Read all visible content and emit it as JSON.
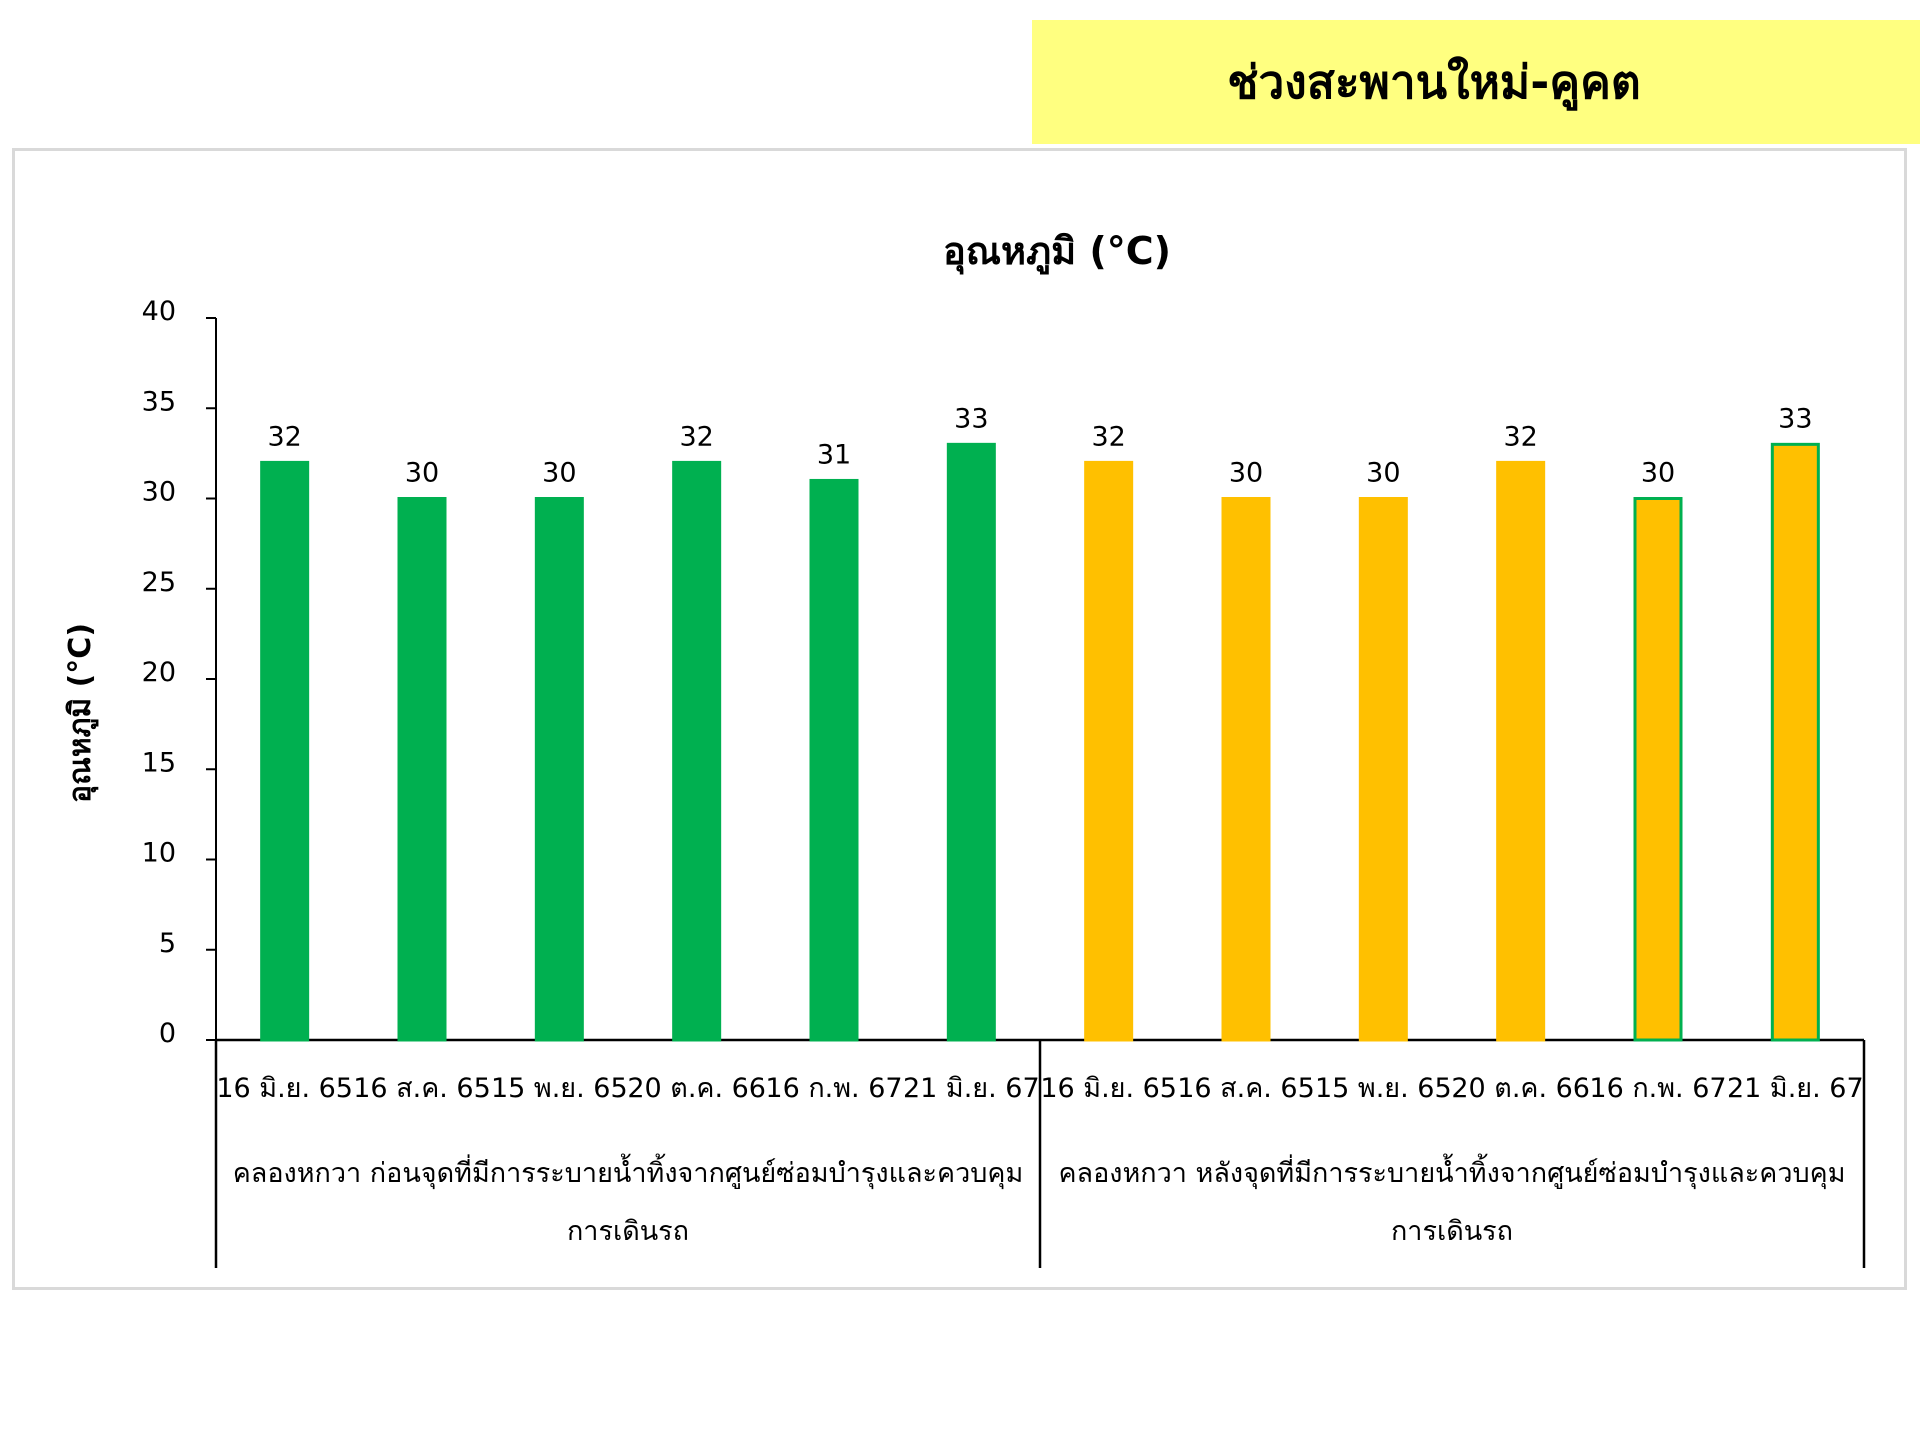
{
  "header": {
    "title": "ช่วงสะพานใหม่-คูคต"
  },
  "colors": {
    "banner": "#ffff80",
    "green": "#00b050",
    "yellow": "#ffc000",
    "axis": "#000000",
    "frame": "#d9d9d9"
  },
  "chart_data": {
    "type": "bar",
    "title": "อุณหภูมิ (°C)",
    "xlabel": "",
    "ylabel": "อุณหภูมิ (°C)",
    "ylim": [
      0,
      40
    ],
    "yticks": [
      "0",
      "5",
      "10",
      "15",
      "20",
      "25",
      "30",
      "35",
      "40"
    ],
    "grid": false,
    "legend": "none",
    "groups": [
      {
        "label_line1": "คลองหกวา ก่อนจุดที่มีการระบายน้ำทิ้งจากศูนย์ซ่อมบำรุงและควบคุม",
        "label_line2": "การเดินรถ",
        "color": "#00b050",
        "categories": [
          "16 มิ.ย. 65",
          "16 ส.ค. 65",
          "15 พ.ย. 65",
          "20 ต.ค. 66",
          "16 ก.พ. 67",
          "21 มิ.ย. 67"
        ],
        "values": [
          32,
          30,
          30,
          32,
          31,
          33
        ],
        "labels": [
          "32",
          "30",
          "30",
          "32",
          "31",
          "33"
        ],
        "bar_colors": [
          "#00b050",
          "#00b050",
          "#00b050",
          "#00b050",
          "#00b050",
          "#00b050"
        ],
        "bar_borders": [
          "#00b050",
          "#00b050",
          "#00b050",
          "#00b050",
          "#00b050",
          "#00b050"
        ]
      },
      {
        "label_line1": "คลองหกวา หลังจุดที่มีการระบายน้ำทิ้งจากศูนย์ซ่อมบำรุงและควบคุม",
        "label_line2": "การเดินรถ",
        "color": "#ffc000",
        "categories": [
          "16 มิ.ย. 65",
          "16 ส.ค. 65",
          "15 พ.ย. 65",
          "20 ต.ค. 66",
          "16 ก.พ. 67",
          "21 มิ.ย. 67"
        ],
        "values": [
          32,
          30,
          30,
          32,
          30,
          33
        ],
        "labels": [
          "32",
          "30",
          "30",
          "32",
          "30",
          "33"
        ],
        "bar_colors": [
          "#ffc000",
          "#ffc000",
          "#ffc000",
          "#ffc000",
          "#ffc000",
          "#ffc000"
        ],
        "bar_borders": [
          "#ffc000",
          "#ffc000",
          "#ffc000",
          "#ffc000",
          "#00b050",
          "#00b050"
        ]
      }
    ]
  }
}
